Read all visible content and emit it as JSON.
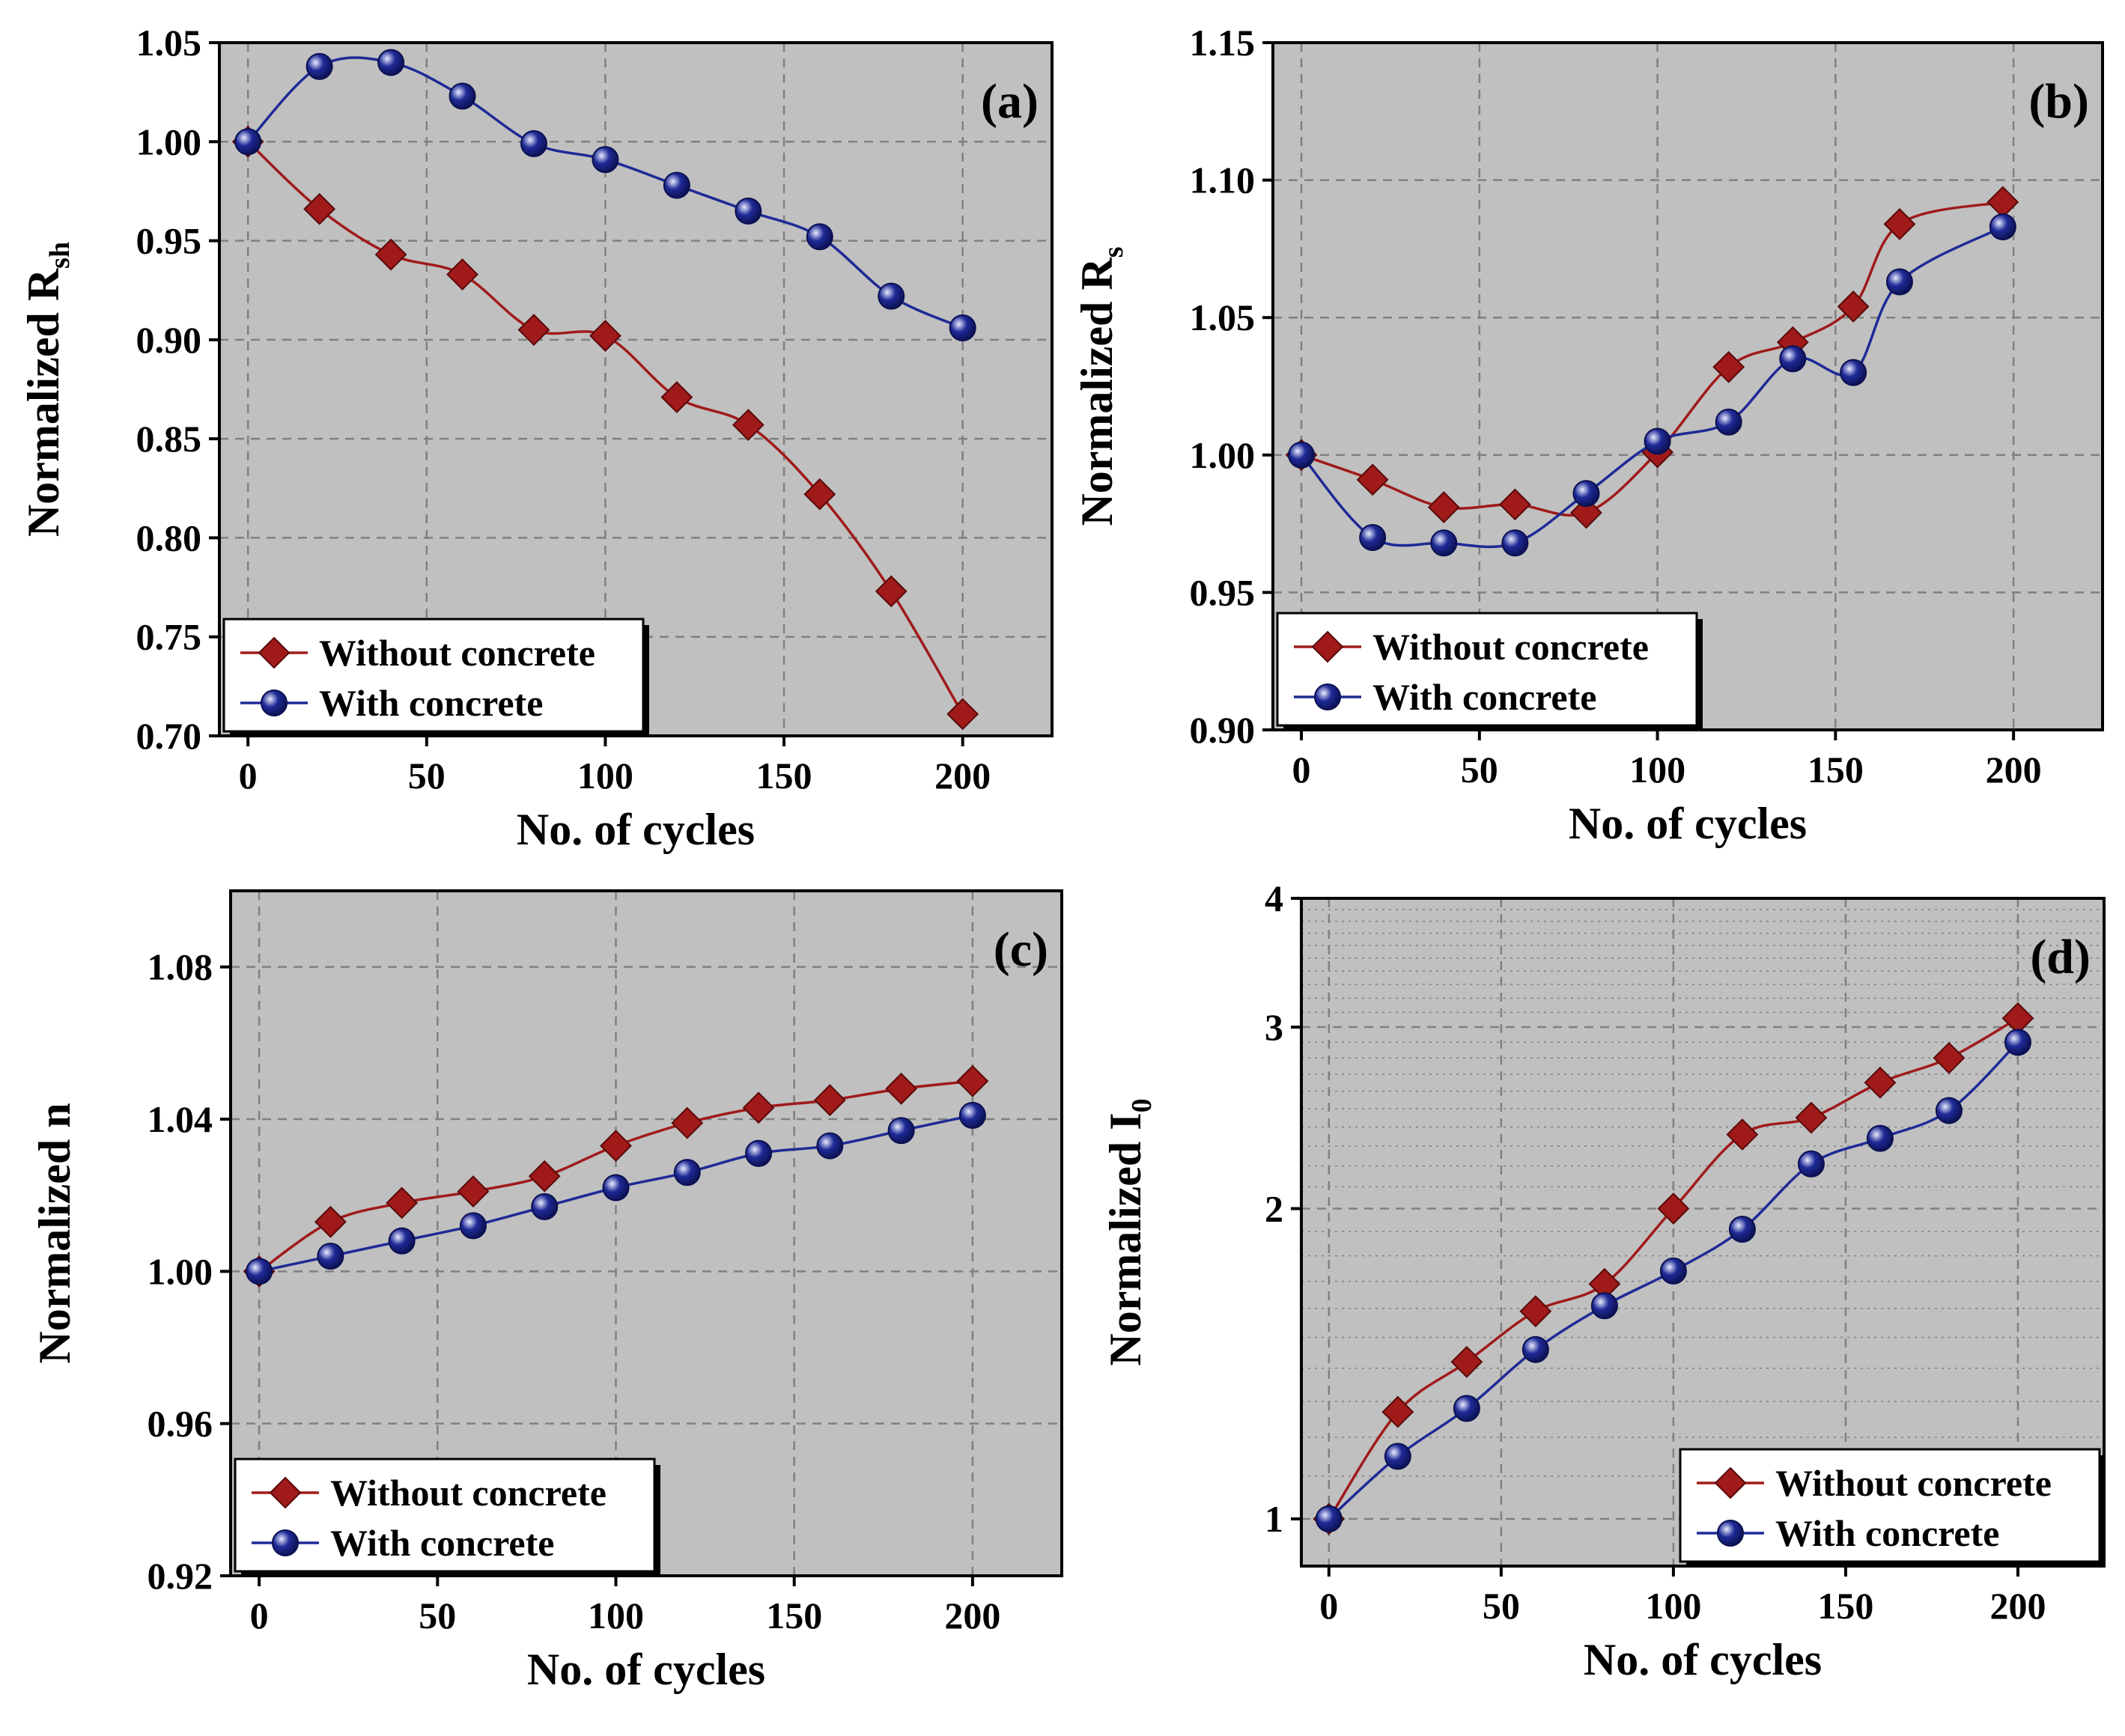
{
  "figure": {
    "legend": {
      "without_label": "Without concrete",
      "with_label": "With concrete"
    },
    "colors": {
      "plot_background": "#c0c0c0",
      "without_concrete": "#a01a1a",
      "with_concrete": "#1f2a96",
      "grid": "#808080"
    }
  },
  "chart_data": [
    {
      "id": "a",
      "type": "line",
      "panel_label": "(a)",
      "title": "",
      "xlabel": "No. of cycles",
      "ylabel": "Normalized R",
      "ylabel_sub": "sh",
      "xlim": [
        -8,
        225
      ],
      "ylim": [
        0.7,
        1.05
      ],
      "scale": "linear",
      "xticks": [
        0,
        50,
        100,
        150,
        200
      ],
      "yticks": [
        0.7,
        0.75,
        0.8,
        0.85,
        0.9,
        0.95,
        1.0,
        1.05
      ],
      "ytick_labels": [
        "0.70",
        "0.75",
        "0.80",
        "0.85",
        "0.90",
        "0.95",
        "1.00",
        "1.05"
      ],
      "legend_position": "bottom-left",
      "series": [
        {
          "name": "Without concrete",
          "marker": "diamond",
          "x": [
            0,
            20,
            40,
            60,
            80,
            100,
            120,
            140,
            160,
            180,
            200
          ],
          "values": [
            1.0,
            0.966,
            0.943,
            0.933,
            0.905,
            0.902,
            0.871,
            0.857,
            0.822,
            0.773,
            0.711
          ]
        },
        {
          "name": "With concrete",
          "marker": "circle",
          "x": [
            0,
            20,
            40,
            60,
            80,
            100,
            120,
            140,
            160,
            180,
            200
          ],
          "values": [
            1.0,
            1.038,
            1.04,
            1.023,
            0.999,
            0.991,
            0.978,
            0.965,
            0.952,
            0.922,
            0.906
          ]
        }
      ]
    },
    {
      "id": "b",
      "type": "line",
      "panel_label": "(b)",
      "title": "",
      "xlabel": "No. of cycles",
      "ylabel": "Normalized R",
      "ylabel_sub": "s",
      "xlim": [
        -8,
        225
      ],
      "ylim": [
        0.9,
        1.15
      ],
      "scale": "linear",
      "xticks": [
        0,
        50,
        100,
        150,
        200
      ],
      "yticks": [
        0.9,
        0.95,
        1.0,
        1.05,
        1.1,
        1.15
      ],
      "ytick_labels": [
        "0.90",
        "0.95",
        "1.00",
        "1.05",
        "1.10",
        "1.15"
      ],
      "legend_position": "bottom-left",
      "series": [
        {
          "name": "Without concrete",
          "marker": "diamond",
          "x": [
            0,
            20,
            40,
            60,
            80,
            100,
            120,
            138,
            155,
            168,
            197
          ],
          "values": [
            1.0,
            0.991,
            0.981,
            0.982,
            0.979,
            1.001,
            1.032,
            1.041,
            1.054,
            1.084,
            1.092
          ]
        },
        {
          "name": "With concrete",
          "marker": "circle",
          "x": [
            0,
            20,
            40,
            60,
            80,
            100,
            120,
            138,
            155,
            168,
            197
          ],
          "values": [
            1.0,
            0.97,
            0.968,
            0.968,
            0.986,
            1.005,
            1.012,
            1.035,
            1.03,
            1.063,
            1.083
          ]
        }
      ]
    },
    {
      "id": "c",
      "type": "line",
      "panel_label": "(c)",
      "title": "",
      "xlabel": "No. of cycles",
      "ylabel": "Normalized n",
      "ylabel_sub": "",
      "xlim": [
        -8,
        225
      ],
      "ylim": [
        0.92,
        1.1
      ],
      "scale": "linear",
      "xticks": [
        0,
        50,
        100,
        150,
        200
      ],
      "yticks": [
        0.92,
        0.96,
        1.0,
        1.04,
        1.08
      ],
      "ytick_labels": [
        "0.92",
        "0.96",
        "1.00",
        "1.04",
        "1.08"
      ],
      "legend_position": "bottom-left",
      "series": [
        {
          "name": "Without concrete",
          "marker": "diamond",
          "x": [
            0,
            20,
            40,
            60,
            80,
            100,
            120,
            140,
            160,
            180,
            200
          ],
          "values": [
            1.0,
            1.013,
            1.018,
            1.021,
            1.025,
            1.033,
            1.039,
            1.043,
            1.045,
            1.048,
            1.05
          ]
        },
        {
          "name": "With concrete",
          "marker": "circle",
          "x": [
            0,
            20,
            40,
            60,
            80,
            100,
            120,
            140,
            160,
            180,
            200
          ],
          "values": [
            1.0,
            1.004,
            1.008,
            1.012,
            1.017,
            1.022,
            1.026,
            1.031,
            1.033,
            1.037,
            1.041
          ]
        }
      ]
    },
    {
      "id": "d",
      "type": "line",
      "panel_label": "(d)",
      "title": "",
      "xlabel": "No. of cycles",
      "ylabel": "Normalized I",
      "ylabel_sub": "0",
      "xlim": [
        -8,
        225
      ],
      "ylim": [
        0.9,
        4.0
      ],
      "scale": "log",
      "xticks": [
        0,
        50,
        100,
        150,
        200
      ],
      "yticks": [
        1,
        2,
        3,
        4
      ],
      "ytick_labels": [
        "1",
        "2",
        "3",
        "4"
      ],
      "legend_position": "bottom-right",
      "series": [
        {
          "name": "Without concrete",
          "marker": "diamond",
          "x": [
            0,
            20,
            40,
            60,
            80,
            100,
            120,
            140,
            160,
            180,
            200
          ],
          "values": [
            1.0,
            1.27,
            1.42,
            1.59,
            1.69,
            2.0,
            2.36,
            2.45,
            2.65,
            2.8,
            3.06
          ]
        },
        {
          "name": "With concrete",
          "marker": "circle",
          "x": [
            0,
            20,
            40,
            60,
            80,
            100,
            120,
            140,
            160,
            180,
            200
          ],
          "values": [
            1.0,
            1.15,
            1.28,
            1.46,
            1.61,
            1.74,
            1.91,
            2.21,
            2.34,
            2.49,
            2.9
          ]
        }
      ]
    }
  ]
}
